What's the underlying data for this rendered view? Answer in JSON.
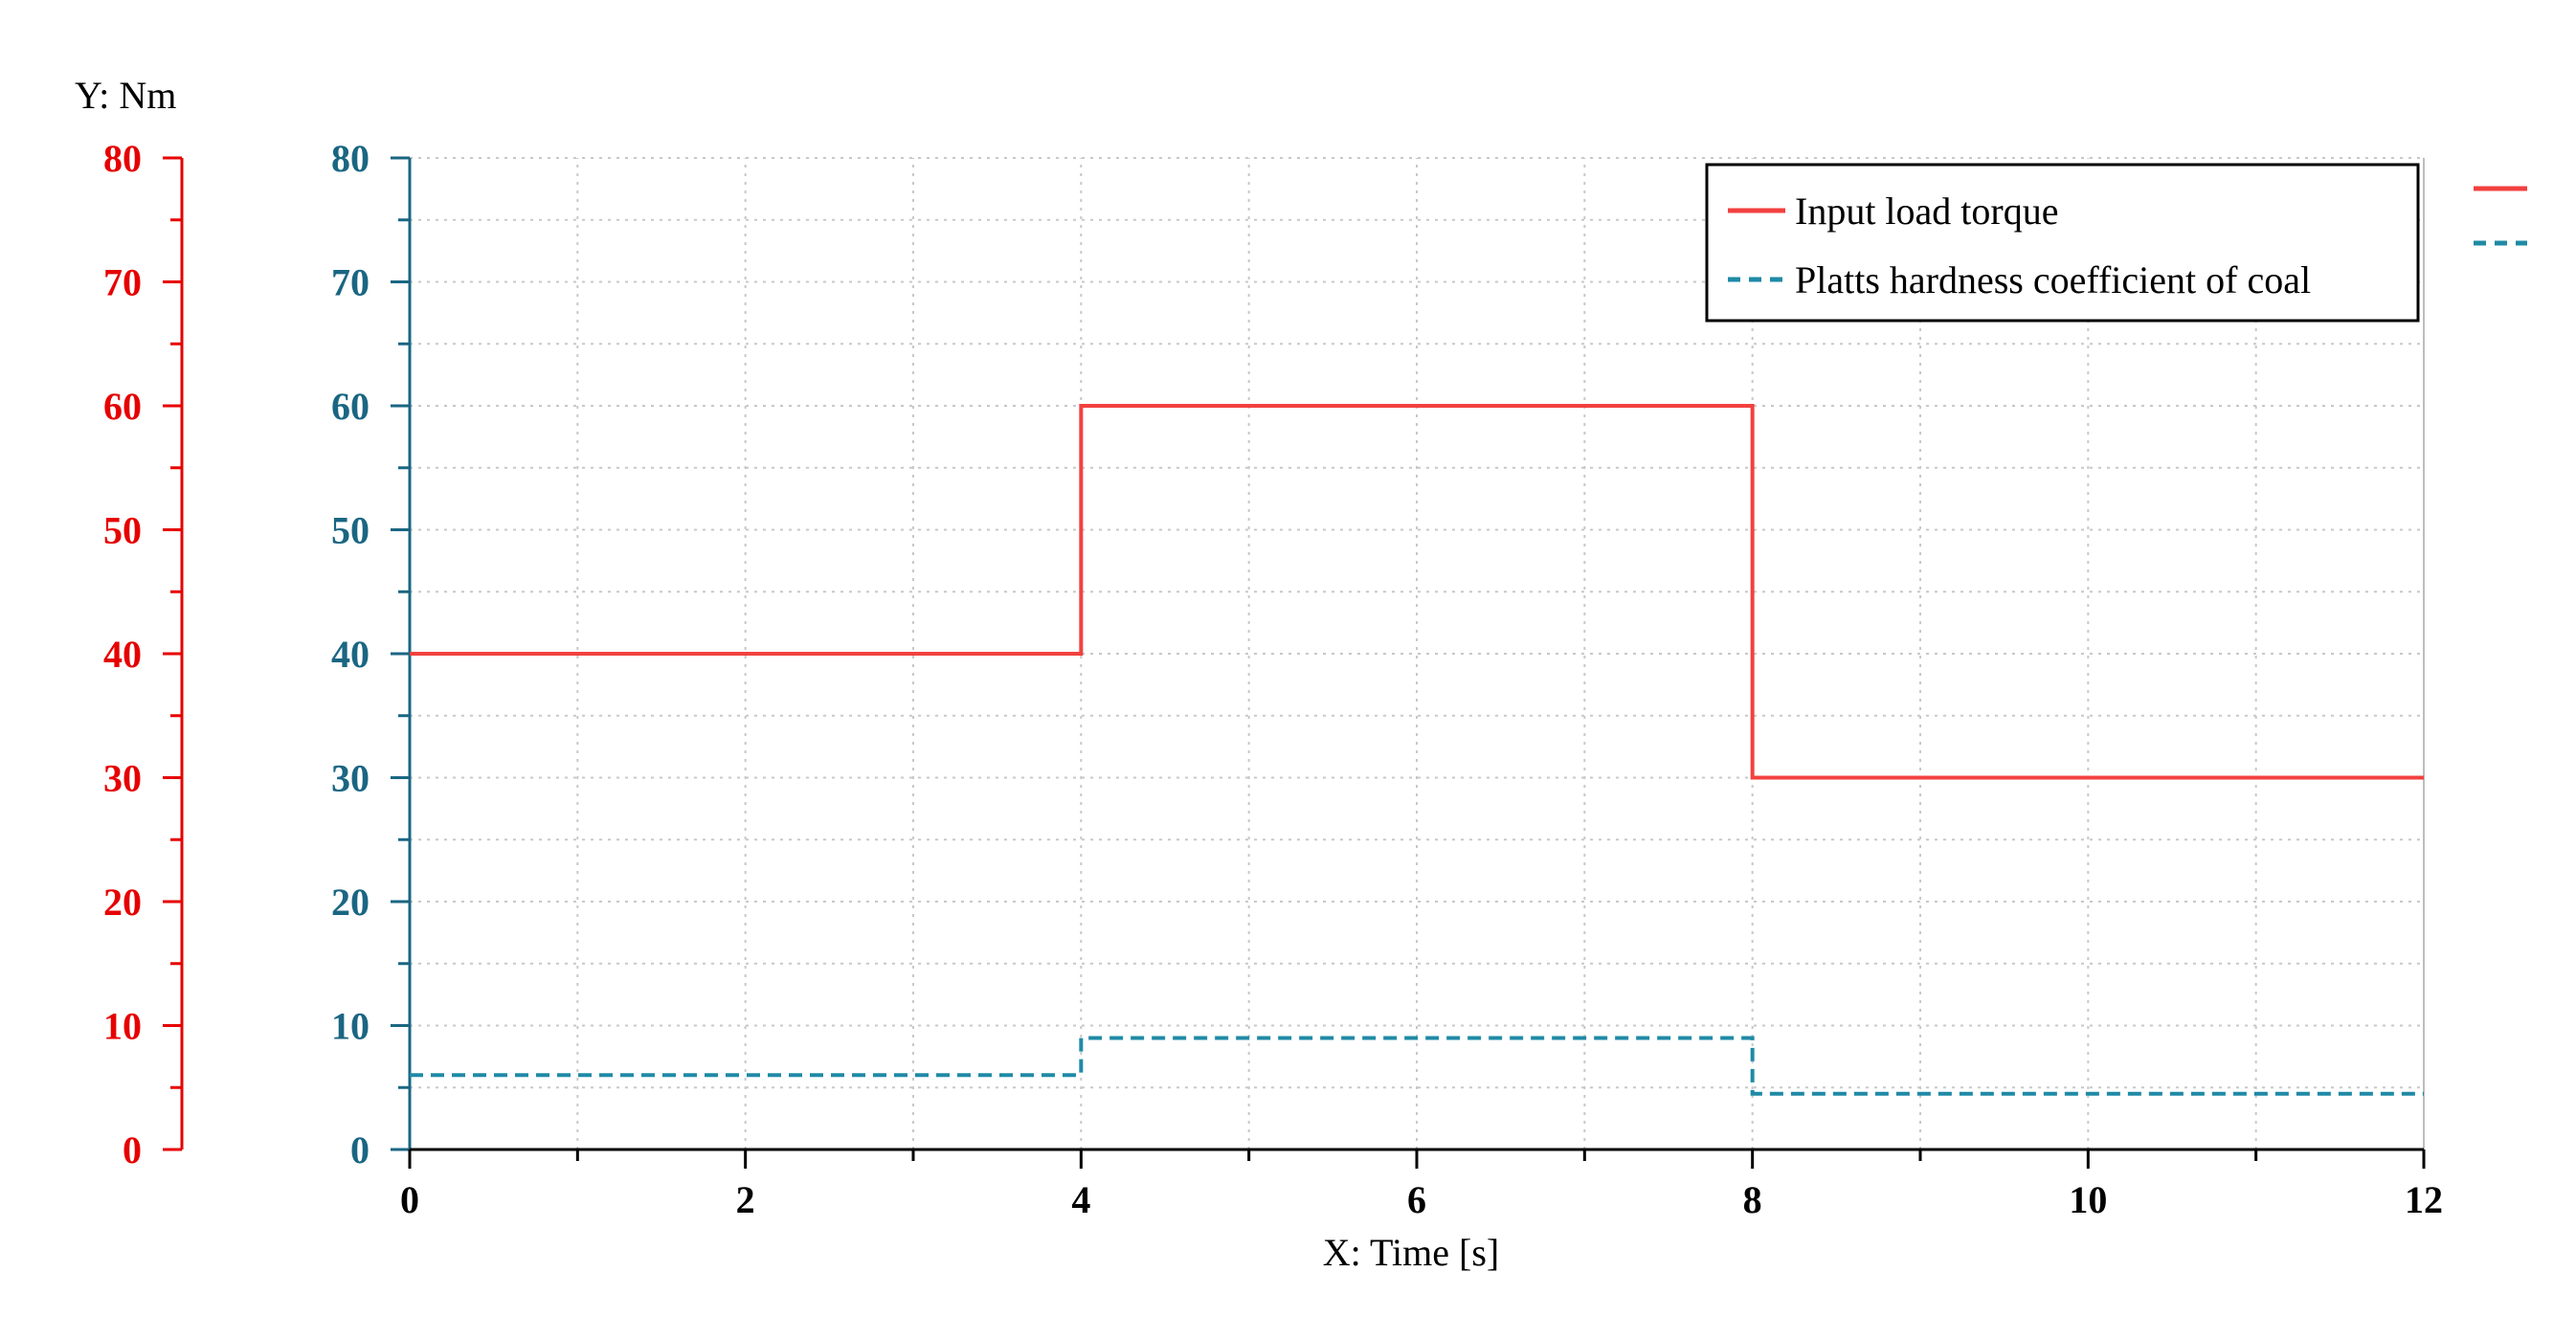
{
  "chart_data": {
    "type": "line",
    "xlabel": "X: Time [s]",
    "ylabel": "Y: Nm",
    "xlim": [
      0,
      12
    ],
    "ylim": [
      0,
      80
    ],
    "x_ticks": [
      0,
      2,
      4,
      6,
      8,
      10,
      12
    ],
    "y_ticks": [
      0,
      10,
      20,
      30,
      40,
      50,
      60,
      70,
      80
    ],
    "grid": true,
    "legend_position": "top-right",
    "series": [
      {
        "name": "Input load torque",
        "color": "#f2413f",
        "style": "solid",
        "step": true,
        "x": [
          0,
          4,
          4,
          8,
          8,
          12
        ],
        "y": [
          40,
          40,
          60,
          60,
          30,
          30
        ]
      },
      {
        "name": "Platts hardness coefficient of coal",
        "color": "#1f8aa6",
        "style": "dashed",
        "step": true,
        "x": [
          0,
          4,
          4,
          8,
          8,
          12
        ],
        "y": [
          6,
          6,
          9,
          9,
          4.5,
          4.5
        ]
      }
    ]
  },
  "colors": {
    "left_axis": "#e60000",
    "main_axis": "#1a6682",
    "grid": "#c8c8c8",
    "text": "#000000"
  }
}
